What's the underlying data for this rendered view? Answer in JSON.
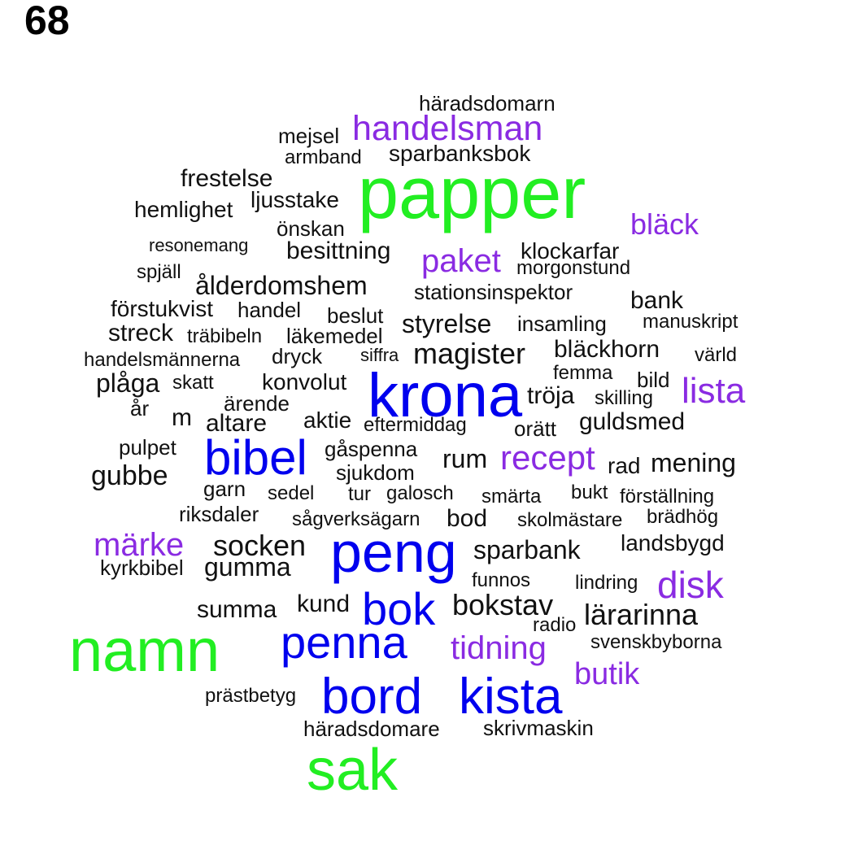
{
  "page_number": "68",
  "colors": {
    "green": "#22ee22",
    "blue": "#0000ee",
    "purple": "#8a2be2",
    "black": "#111111"
  },
  "words": [
    {
      "text": "häradsdomarn",
      "color": "black"
    },
    {
      "text": "handelsman",
      "color": "purple"
    },
    {
      "text": "mejsel",
      "color": "black"
    },
    {
      "text": "armband",
      "color": "black"
    },
    {
      "text": "sparbanksbok",
      "color": "black"
    },
    {
      "text": "papper",
      "color": "green"
    },
    {
      "text": "frestelse",
      "color": "black"
    },
    {
      "text": "hemlighet",
      "color": "black"
    },
    {
      "text": "ljusstake",
      "color": "black"
    },
    {
      "text": "bläck",
      "color": "purple"
    },
    {
      "text": "önskan",
      "color": "black"
    },
    {
      "text": "resonemang",
      "color": "black"
    },
    {
      "text": "besittning",
      "color": "black"
    },
    {
      "text": "paket",
      "color": "purple"
    },
    {
      "text": "klockarfar",
      "color": "black"
    },
    {
      "text": "morgonstund",
      "color": "black"
    },
    {
      "text": "spjäll",
      "color": "black"
    },
    {
      "text": "ålderdomshem",
      "color": "black"
    },
    {
      "text": "stationsinspektor",
      "color": "black"
    },
    {
      "text": "bank",
      "color": "black"
    },
    {
      "text": "förstukvist",
      "color": "black"
    },
    {
      "text": "handel",
      "color": "black"
    },
    {
      "text": "beslut",
      "color": "black"
    },
    {
      "text": "styrelse",
      "color": "black"
    },
    {
      "text": "insamling",
      "color": "black"
    },
    {
      "text": "manuskript",
      "color": "black"
    },
    {
      "text": "streck",
      "color": "black"
    },
    {
      "text": "träbibeln",
      "color": "black"
    },
    {
      "text": "läkemedel",
      "color": "black"
    },
    {
      "text": "magister",
      "color": "black"
    },
    {
      "text": "bläckhorn",
      "color": "black"
    },
    {
      "text": "handelsmännerna",
      "color": "black"
    },
    {
      "text": "dryck",
      "color": "black"
    },
    {
      "text": "siffra",
      "color": "black"
    },
    {
      "text": "värld",
      "color": "black"
    },
    {
      "text": "femma",
      "color": "black"
    },
    {
      "text": "plåga",
      "color": "black"
    },
    {
      "text": "skatt",
      "color": "black"
    },
    {
      "text": "konvolut",
      "color": "black"
    },
    {
      "text": "krona",
      "color": "blue"
    },
    {
      "text": "bild",
      "color": "black"
    },
    {
      "text": "lista",
      "color": "purple"
    },
    {
      "text": "år",
      "color": "black"
    },
    {
      "text": "ärende",
      "color": "black"
    },
    {
      "text": "tröja",
      "color": "black"
    },
    {
      "text": "skilling",
      "color": "black"
    },
    {
      "text": "m",
      "color": "black"
    },
    {
      "text": "altare",
      "color": "black"
    },
    {
      "text": "aktie",
      "color": "black"
    },
    {
      "text": "eftermiddag",
      "color": "black"
    },
    {
      "text": "orätt",
      "color": "black"
    },
    {
      "text": "guldsmed",
      "color": "black"
    },
    {
      "text": "pulpet",
      "color": "black"
    },
    {
      "text": "bibel",
      "color": "blue"
    },
    {
      "text": "gåspenna",
      "color": "black"
    },
    {
      "text": "rum",
      "color": "black"
    },
    {
      "text": "recept",
      "color": "purple"
    },
    {
      "text": "rad",
      "color": "black"
    },
    {
      "text": "mening",
      "color": "black"
    },
    {
      "text": "gubbe",
      "color": "black"
    },
    {
      "text": "sjukdom",
      "color": "black"
    },
    {
      "text": "garn",
      "color": "black"
    },
    {
      "text": "sedel",
      "color": "black"
    },
    {
      "text": "tur",
      "color": "black"
    },
    {
      "text": "galosch",
      "color": "black"
    },
    {
      "text": "smärta",
      "color": "black"
    },
    {
      "text": "bukt",
      "color": "black"
    },
    {
      "text": "förställning",
      "color": "black"
    },
    {
      "text": "riksdaler",
      "color": "black"
    },
    {
      "text": "sågverksägarn",
      "color": "black"
    },
    {
      "text": "bod",
      "color": "black"
    },
    {
      "text": "skolmästare",
      "color": "black"
    },
    {
      "text": "brädhög",
      "color": "black"
    },
    {
      "text": "märke",
      "color": "purple"
    },
    {
      "text": "socken",
      "color": "black"
    },
    {
      "text": "peng",
      "color": "blue"
    },
    {
      "text": "sparbank",
      "color": "black"
    },
    {
      "text": "landsbygd",
      "color": "black"
    },
    {
      "text": "kyrkbibel",
      "color": "black"
    },
    {
      "text": "gumma",
      "color": "black"
    },
    {
      "text": "funnos",
      "color": "black"
    },
    {
      "text": "lindring",
      "color": "black"
    },
    {
      "text": "disk",
      "color": "purple"
    },
    {
      "text": "summa",
      "color": "black"
    },
    {
      "text": "kund",
      "color": "black"
    },
    {
      "text": "bok",
      "color": "blue"
    },
    {
      "text": "bokstav",
      "color": "black"
    },
    {
      "text": "lärarinna",
      "color": "black"
    },
    {
      "text": "radio",
      "color": "black"
    },
    {
      "text": "namn",
      "color": "green"
    },
    {
      "text": "penna",
      "color": "blue"
    },
    {
      "text": "tidning",
      "color": "purple"
    },
    {
      "text": "svenskbyborna",
      "color": "black"
    },
    {
      "text": "butik",
      "color": "purple"
    },
    {
      "text": "prästbetyg",
      "color": "black"
    },
    {
      "text": "bord",
      "color": "blue"
    },
    {
      "text": "kista",
      "color": "blue"
    },
    {
      "text": "häradsdomare",
      "color": "black"
    },
    {
      "text": "skrivmaskin",
      "color": "black"
    },
    {
      "text": "sak",
      "color": "green"
    }
  ]
}
